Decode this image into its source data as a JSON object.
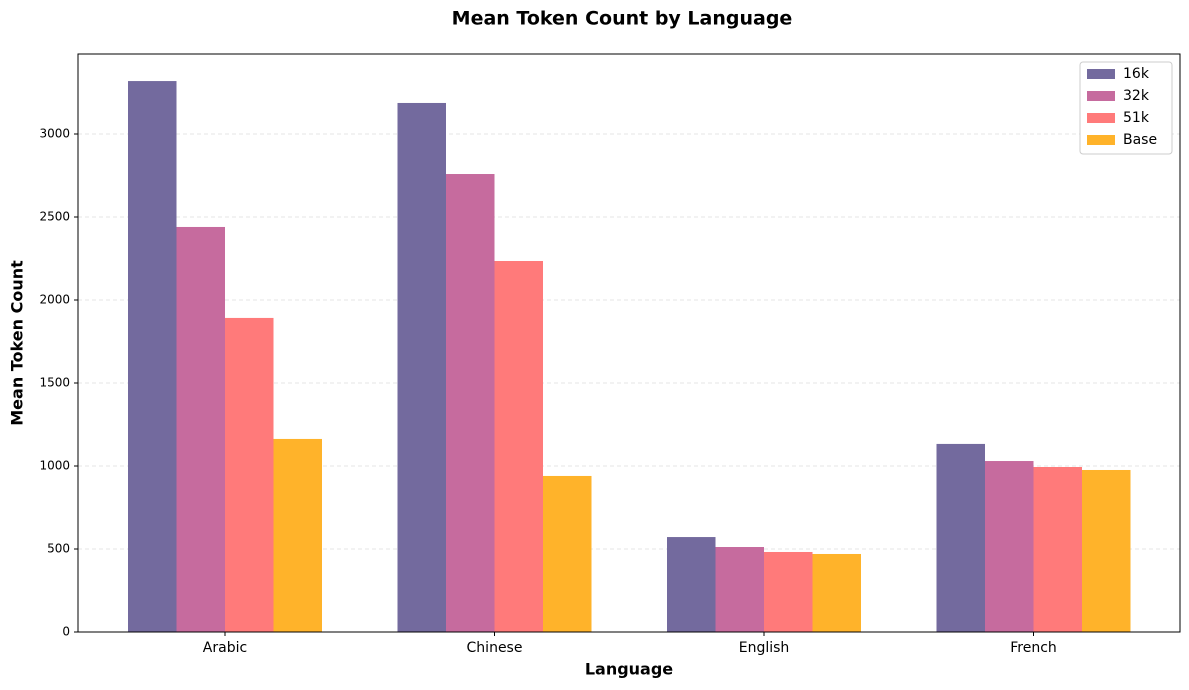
{
  "chart_data": {
    "type": "bar",
    "title": "Mean Token Count by Language",
    "x_label": "Language",
    "y_label": "Mean Token Count",
    "categories": [
      "Arabic",
      "Chinese",
      "English",
      "French"
    ],
    "series": [
      {
        "name": "16k",
        "color": "#736a9e",
        "values": [
          3319,
          3187,
          572,
          1133
        ]
      },
      {
        "name": "32k",
        "color": "#c66b9e",
        "values": [
          2440,
          2759,
          512,
          1030
        ]
      },
      {
        "name": "51k",
        "color": "#ff7a7a",
        "values": [
          1892,
          2235,
          482,
          994
        ]
      },
      {
        "name": "Base",
        "color": "#ffb32a",
        "values": [
          1163,
          940,
          470,
          976
        ]
      }
    ],
    "ylim": [
      0,
      3482
    ],
    "yticks": [
      0,
      500,
      1000,
      1500,
      2000,
      2500,
      3000
    ],
    "grid": true,
    "legend": "upper right"
  }
}
